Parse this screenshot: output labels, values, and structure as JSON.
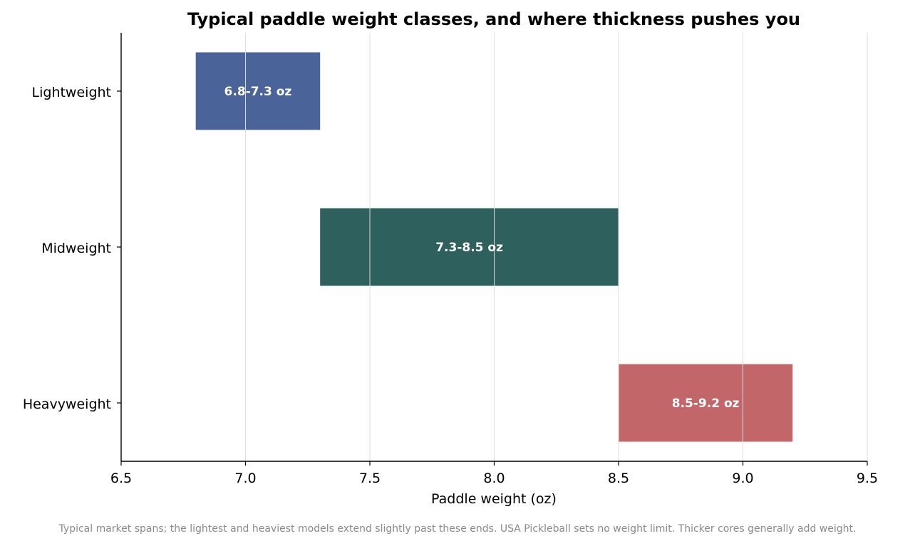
{
  "chart_data": {
    "type": "bar",
    "orientation": "horizontal",
    "title": "Typical paddle weight classes, and where thickness pushes you",
    "xlabel": "Paddle weight (oz)",
    "ylabel": "",
    "xlim": [
      6.5,
      9.5
    ],
    "xticks": [
      "6.5",
      "7.0",
      "7.5",
      "8.0",
      "8.5",
      "9.0",
      "9.5"
    ],
    "grid": "vertical",
    "legend": "none",
    "categories": [
      "Lightweight",
      "Midweight",
      "Heavyweight"
    ],
    "ranges": [
      {
        "category": "Lightweight",
        "start": 6.8,
        "end": 7.3,
        "label": "6.8-7.3 oz",
        "color": "#4a6399"
      },
      {
        "category": "Midweight",
        "start": 7.3,
        "end": 8.5,
        "label": "7.3-8.5 oz",
        "color": "#2e605d"
      },
      {
        "category": "Heavyweight",
        "start": 8.5,
        "end": 9.2,
        "label": "8.5-9.2 oz",
        "color": "#c2666a"
      }
    ]
  },
  "footnote": "Typical market spans; the lightest and heaviest models extend slightly past these ends. USA Pickleball sets no weight limit. Thicker cores generally add weight."
}
